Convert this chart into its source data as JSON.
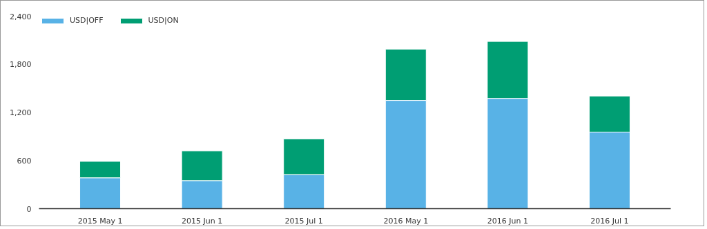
{
  "chart_data": {
    "type": "bar",
    "stacked": true,
    "categories": [
      "2015 May 1",
      "2015 Jun 1",
      "2015 Jul 1",
      "2016 May 1",
      "2016 Jun 1",
      "2016 Jul 1"
    ],
    "series": [
      {
        "name": "USD|OFF",
        "color": "#58b2e6",
        "values": [
          385,
          350,
          425,
          1350,
          1375,
          955
        ]
      },
      {
        "name": "USD|ON",
        "color": "#009e73",
        "values": [
          205,
          370,
          445,
          640,
          710,
          450
        ]
      }
    ],
    "ylim": [
      0,
      2400
    ],
    "yticks": [
      0,
      {
        "value": 600,
        "label": "600"
      },
      {
        "value": 1200,
        "label": "1,200"
      },
      {
        "value": 1800,
        "label": "1,800"
      },
      {
        "value": 2400,
        "label": "2,400"
      }
    ],
    "grid": false,
    "legend": "top left"
  }
}
